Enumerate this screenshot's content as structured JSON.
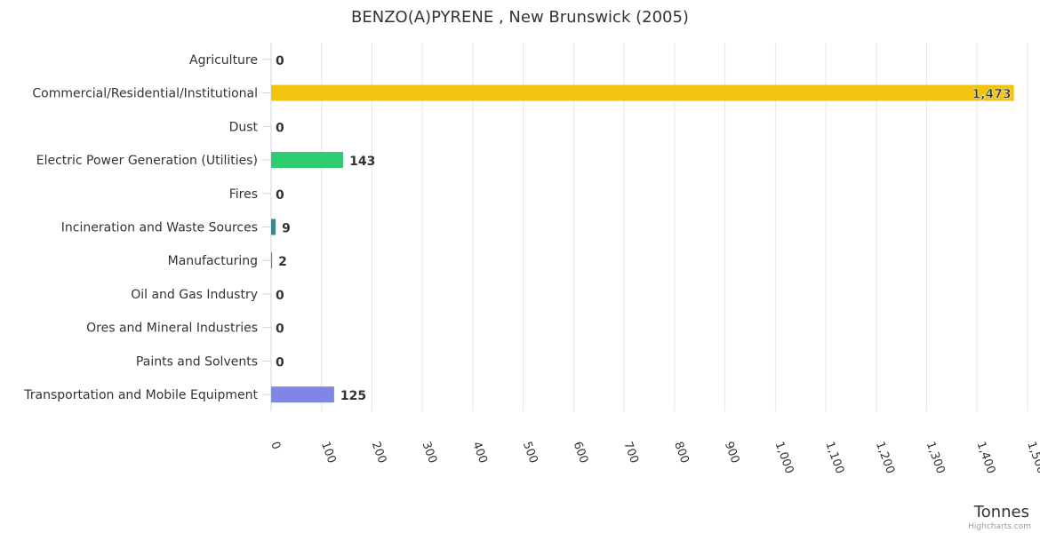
{
  "chart_data": {
    "type": "bar",
    "orientation": "horizontal",
    "title": "BENZO(A)PYRENE , New Brunswick (2005)",
    "xlabel": "Tonnes",
    "credits": "Highcharts.com",
    "xlim": [
      0,
      1500
    ],
    "ticks": [
      "0",
      "100",
      "200",
      "300",
      "400",
      "500",
      "600",
      "700",
      "800",
      "900",
      "1,000",
      "1,100",
      "1,200",
      "1,300",
      "1,400",
      "1,500"
    ],
    "grid": true,
    "categories": [
      "Agriculture",
      "Commercial/Residential/Institutional",
      "Dust",
      "Electric Power Generation (Utilities)",
      "Fires",
      "Incineration and Waste Sources",
      "Manufacturing",
      "Oil and Gas Industry",
      "Ores and Mineral Industries",
      "Paints and Solvents",
      "Transportation and Mobile Equipment"
    ],
    "values": [
      0,
      1473,
      0,
      143,
      0,
      9,
      2,
      0,
      0,
      0,
      125
    ],
    "labels": [
      "0",
      "1,473",
      "0",
      "143",
      "0",
      "9",
      "2",
      "0",
      "0",
      "0",
      "125"
    ],
    "colors": [
      "#7cb5ec",
      "#f1c40f",
      "#90ed7d",
      "#2ecc71",
      "#f7a35c",
      "#2a8f8f",
      "#e74c3c",
      "#8e44ad",
      "#34495e",
      "#95a5a6",
      "#7f86e6"
    ]
  }
}
